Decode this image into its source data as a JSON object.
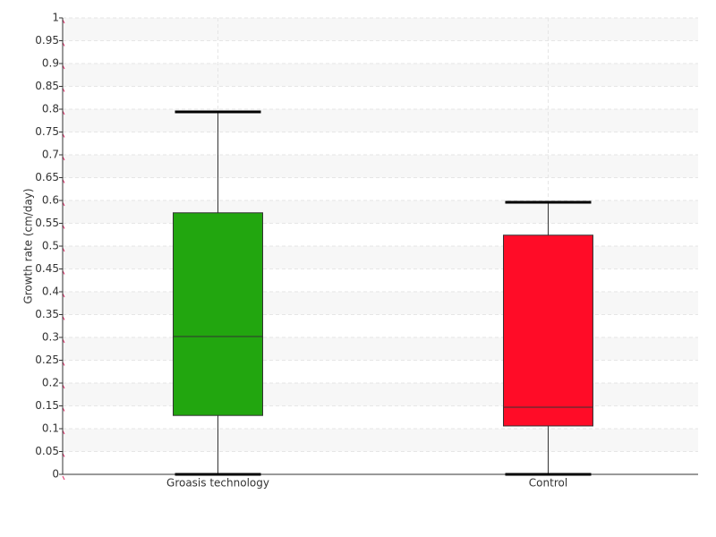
{
  "chart_data": {
    "type": "box",
    "y_label": "Growth rate (cm/day)",
    "categories": [
      "Groasis technology",
      "Control"
    ],
    "boxes": [
      {
        "min": 0,
        "q1": 0.129,
        "median": 0.302,
        "q3": 0.573,
        "max": 0.794,
        "color": "#22a60f"
      },
      {
        "min": 0,
        "q1": 0.106,
        "median": 0.147,
        "q3": 0.524,
        "max": 0.596,
        "color": "#ff0c27"
      }
    ],
    "ylim": [
      0,
      1
    ],
    "yticks": [
      0,
      0.05,
      0.1,
      0.15,
      0.2,
      0.25,
      0.3,
      0.35,
      0.4,
      0.45,
      0.5,
      0.55,
      0.6,
      0.65,
      0.7,
      0.75,
      0.8,
      0.85,
      0.9,
      0.95,
      1
    ],
    "grid": true
  }
}
